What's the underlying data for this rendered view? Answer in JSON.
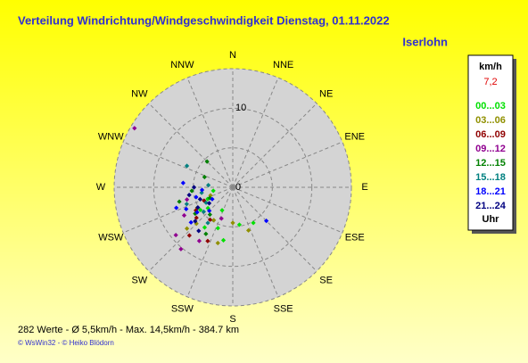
{
  "chart_data": {
    "type": "polar-scatter",
    "title": "Verteilung Windrichtung/Windgeschwindigkeit  Dienstag, 01.11.2022",
    "location": "Iserlohn",
    "legend_unit": "km/h",
    "legend_value": "7,2",
    "legend_footer": "Uhr",
    "directions": [
      "N",
      "NNE",
      "NE",
      "ENE",
      "E",
      "ESE",
      "SE",
      "SSE",
      "S",
      "SSW",
      "SW",
      "WSW",
      "W",
      "WNW",
      "NW",
      "NNW"
    ],
    "rlim": [
      0,
      15
    ],
    "rticks": [
      0,
      10
    ],
    "rings": [
      5,
      10,
      15
    ],
    "series": [
      {
        "name": "00...03",
        "color": "#00e000",
        "theta": [
          200,
          215,
          230,
          245,
          170,
          150,
          190,
          260,
          235,
          205
        ],
        "r": [
          5.5,
          6.2,
          4.1,
          3.5,
          4.8,
          5.2,
          6.8,
          2.5,
          5.0,
          3.2
        ]
      },
      {
        "name": "03...06",
        "color": "#909000",
        "theta": [
          210,
          225,
          240,
          195,
          180,
          160,
          250,
          228
        ],
        "r": [
          4.8,
          6.5,
          5.2,
          7.3,
          4.5,
          5.8,
          3.0,
          7.8
        ]
      },
      {
        "name": "06...09",
        "color": "#900000",
        "theta": [
          215,
          230,
          205,
          245,
          222,
          238
        ],
        "r": [
          5.0,
          6.0,
          7.5,
          4.0,
          8.2,
          5.5
        ]
      },
      {
        "name": "09...12",
        "color": "#900090",
        "theta": [
          301,
          220,
          240,
          255,
          230,
          212,
          200
        ],
        "r": [
          14.5,
          10.2,
          7.1,
          6.0,
          9.4,
          8.0,
          4.2
        ]
      },
      {
        "name": "12...15",
        "color": "#008000",
        "theta": [
          255,
          235,
          220,
          265,
          245,
          210,
          290,
          315
        ],
        "r": [
          7.0,
          5.8,
          4.5,
          5.2,
          3.2,
          6.8,
          3.8,
          4.6
        ]
      },
      {
        "name": "15...18",
        "color": "#008080",
        "theta": [
          250,
          230,
          240,
          215,
          260,
          275,
          295
        ],
        "r": [
          6.2,
          4.8,
          3.9,
          5.5,
          4.0,
          3.1,
          6.4
        ]
      },
      {
        "name": "18...21",
        "color": "#0000ff",
        "theta": [
          245,
          235,
          225,
          255,
          265,
          240,
          230,
          275,
          135,
          250
        ],
        "r": [
          6.5,
          5.5,
          4.2,
          4.8,
          3.9,
          3.0,
          6.9,
          6.3,
          6.0,
          7.6
        ]
      },
      {
        "name": "21...24",
        "color": "#000080",
        "theta": [
          240,
          228,
          250,
          218,
          236,
          260,
          270
        ],
        "r": [
          5.1,
          6.4,
          4.4,
          7.0,
          3.6,
          5.6,
          4.9
        ]
      }
    ],
    "footer_stats": "282 Werte   -   Ø 5,5km/h  -  Max. 14,5km/h   -   384.7 km",
    "footer_copyright": "© WsWin32  -  © Heiko Blödorn"
  }
}
